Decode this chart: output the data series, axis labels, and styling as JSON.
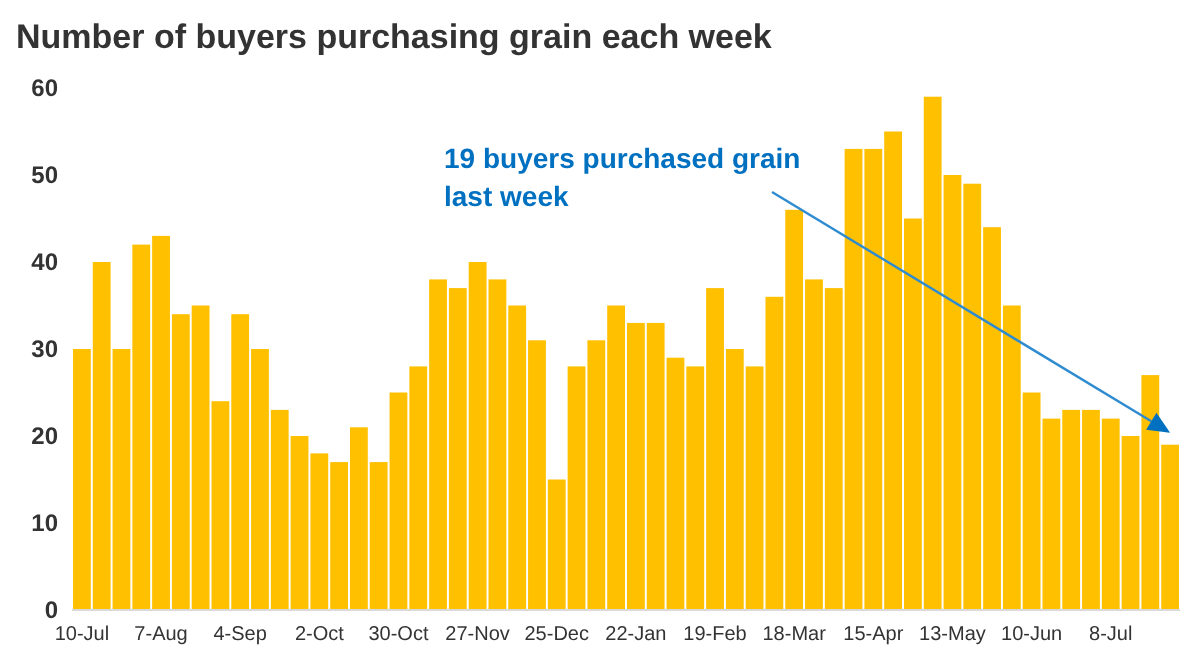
{
  "chart_data": {
    "type": "bar",
    "title": "Number of buyers purchasing grain each week",
    "categories": [
      "10-Jul",
      null,
      null,
      null,
      "7-Aug",
      null,
      null,
      null,
      "4-Sep",
      null,
      null,
      null,
      "2-Oct",
      null,
      null,
      null,
      "30-Oct",
      null,
      null,
      null,
      "27-Nov",
      null,
      null,
      null,
      "25-Dec",
      null,
      null,
      null,
      "22-Jan",
      null,
      null,
      null,
      "19-Feb",
      null,
      null,
      null,
      "18-Mar",
      null,
      null,
      null,
      "15-Apr",
      null,
      null,
      null,
      "13-May",
      null,
      null,
      null,
      "10-Jun",
      null,
      null,
      null,
      "8-Jul",
      null,
      null,
      null
    ],
    "values": [
      30,
      40,
      30,
      42,
      43,
      34,
      35,
      24,
      34,
      30,
      23,
      20,
      18,
      17,
      21,
      17,
      25,
      28,
      38,
      37,
      40,
      38,
      35,
      31,
      15,
      28,
      31,
      35,
      33,
      33,
      29,
      28,
      37,
      30,
      28,
      36,
      46,
      38,
      37,
      53,
      53,
      55,
      45,
      59,
      50,
      49,
      44,
      35,
      25,
      22,
      23,
      23,
      22,
      20,
      27,
      19
    ],
    "color": "#ffc000",
    "ylim": [
      0,
      60
    ],
    "yticks": [
      0,
      10,
      20,
      30,
      40,
      50,
      60
    ],
    "grid": false,
    "annotations": [
      "19 buyers purchased grain last week"
    ]
  }
}
